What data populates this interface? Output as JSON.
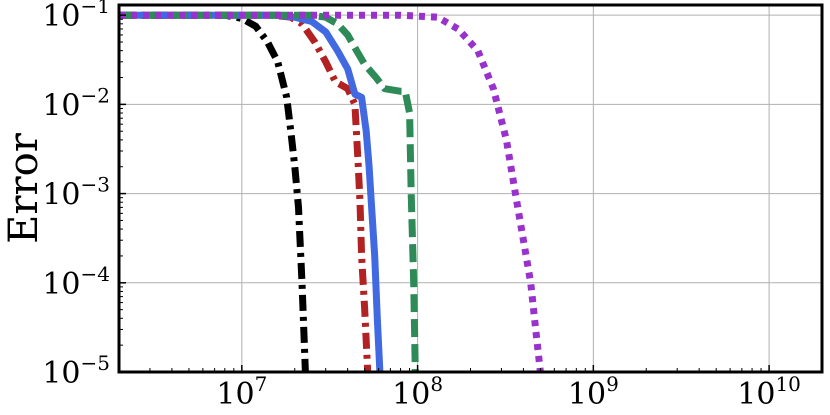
{
  "chart_data": {
    "type": "line",
    "title": "",
    "xlabel": "",
    "ylabel": "Error",
    "xscale": "log",
    "yscale": "log",
    "xlim": [
      2000000,
      20000000000
    ],
    "ylim": [
      1e-05,
      0.13
    ],
    "grid": true,
    "legend": "none",
    "x_ticks": [
      {
        "value": 10000000,
        "base": "10",
        "exp": "7"
      },
      {
        "value": 100000000,
        "base": "10",
        "exp": "8"
      },
      {
        "value": 1000000000,
        "base": "10",
        "exp": "9"
      },
      {
        "value": 10000000000,
        "base": "10",
        "exp": "10"
      }
    ],
    "y_ticks": [
      {
        "value": 0.1,
        "base": "10",
        "exp": "−1"
      },
      {
        "value": 0.01,
        "base": "10",
        "exp": "−2"
      },
      {
        "value": 0.001,
        "base": "10",
        "exp": "−3"
      },
      {
        "value": 0.0001,
        "base": "10",
        "exp": "−4"
      },
      {
        "value": 1e-05,
        "base": "10",
        "exp": "−5"
      }
    ],
    "series": [
      {
        "color": "#000000",
        "style": "dashdot",
        "points": [
          [
            2000000,
            0.1
          ],
          [
            8000000,
            0.1
          ],
          [
            10000000,
            0.092
          ],
          [
            12000000,
            0.075
          ],
          [
            14000000,
            0.05
          ],
          [
            16000000,
            0.03
          ],
          [
            18000000,
            0.012
          ],
          [
            19000000,
            0.005
          ],
          [
            20000000,
            0.002
          ],
          [
            21000000,
            0.0007
          ],
          [
            22000000,
            0.0001
          ],
          [
            23000000,
            1e-05
          ]
        ]
      },
      {
        "color": "#b22222",
        "style": "dashdot",
        "points": [
          [
            2000000,
            0.1
          ],
          [
            15000000,
            0.1
          ],
          [
            19000000,
            0.095
          ],
          [
            22000000,
            0.08
          ],
          [
            26000000,
            0.05
          ],
          [
            30000000,
            0.03
          ],
          [
            34000000,
            0.018
          ],
          [
            40000000,
            0.015
          ],
          [
            44000000,
            0.01
          ],
          [
            46000000,
            0.002
          ],
          [
            47000000,
            0.0008
          ],
          [
            48000000,
            0.0002
          ],
          [
            50000000,
            5e-05
          ],
          [
            52000000,
            1e-05
          ]
        ]
      },
      {
        "color": "#4169e1",
        "style": "solid",
        "points": [
          [
            2000000,
            0.1
          ],
          [
            16000000,
            0.1
          ],
          [
            20000000,
            0.095
          ],
          [
            25000000,
            0.085
          ],
          [
            30000000,
            0.065
          ],
          [
            35000000,
            0.04
          ],
          [
            40000000,
            0.025
          ],
          [
            44000000,
            0.013
          ],
          [
            48000000,
            0.012
          ],
          [
            51000000,
            0.005
          ],
          [
            53000000,
            0.002
          ],
          [
            55000000,
            0.0006
          ],
          [
            57000000,
            0.0002
          ],
          [
            59000000,
            4e-05
          ],
          [
            61000000,
            1e-05
          ]
        ]
      },
      {
        "color": "#2e8b57",
        "style": "dashed",
        "points": [
          [
            2000000,
            0.1
          ],
          [
            25000000,
            0.1
          ],
          [
            30000000,
            0.095
          ],
          [
            35000000,
            0.08
          ],
          [
            40000000,
            0.06
          ],
          [
            45000000,
            0.04
          ],
          [
            50000000,
            0.028
          ],
          [
            58000000,
            0.02
          ],
          [
            65000000,
            0.015
          ],
          [
            80000000,
            0.014
          ],
          [
            85000000,
            0.014
          ],
          [
            90000000,
            0.008
          ],
          [
            92000000,
            0.001
          ],
          [
            95000000,
            0.0001
          ],
          [
            97000000,
            1e-05
          ]
        ]
      },
      {
        "color": "#9932cc",
        "style": "dotted",
        "points": [
          [
            2000000,
            0.1
          ],
          [
            80000000,
            0.1
          ],
          [
            130000000,
            0.095
          ],
          [
            170000000,
            0.07
          ],
          [
            220000000,
            0.04
          ],
          [
            270000000,
            0.015
          ],
          [
            320000000,
            0.004
          ],
          [
            360000000,
            0.001
          ],
          [
            400000000,
            0.0003
          ],
          [
            440000000,
            0.0001
          ],
          [
            470000000,
            3e-05
          ],
          [
            500000000,
            1e-05
          ]
        ]
      }
    ]
  }
}
